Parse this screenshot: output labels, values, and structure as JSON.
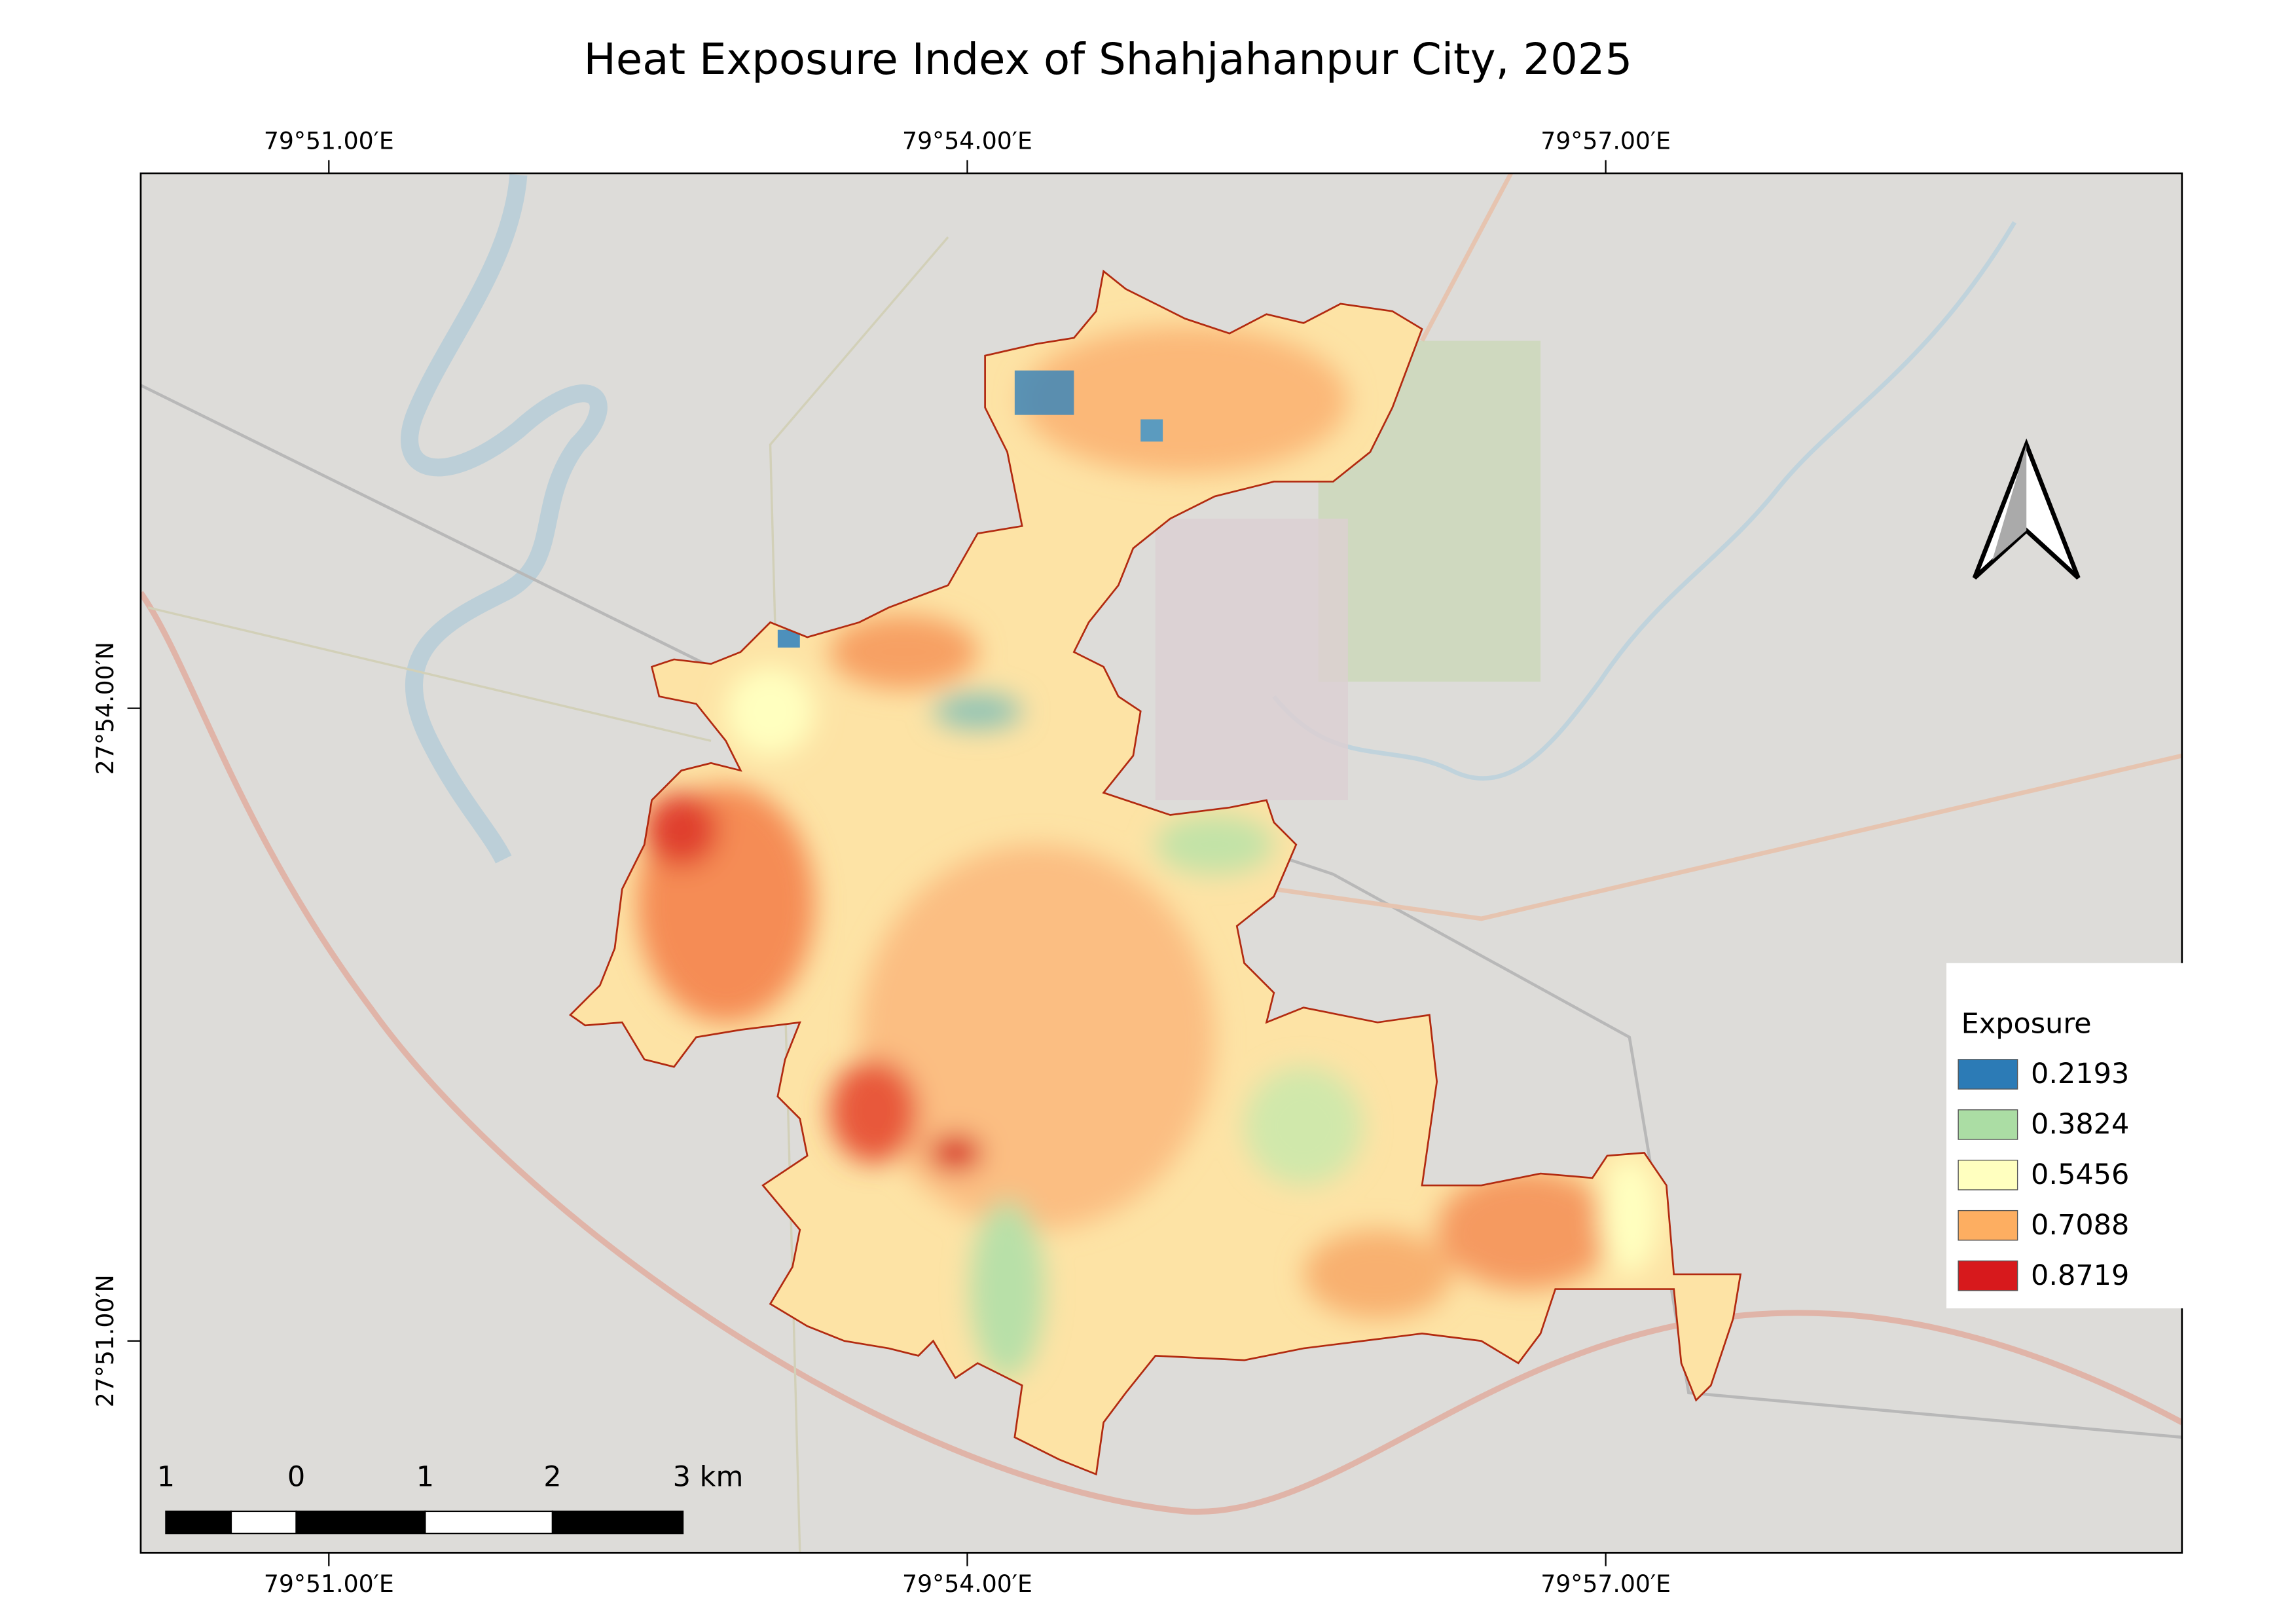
{
  "title": "Heat Exposure Index of Shahjahanpur City, 2025",
  "map": {
    "top_labels": [
      "79°51.00′E",
      "79°54.00′E",
      "79°57.00′E"
    ],
    "bottom_labels": [
      "79°51.00′E",
      "79°54.00′E",
      "79°57.00′E"
    ],
    "left_labels": [
      "27°54.00′N",
      "27°51.00′N"
    ]
  },
  "legend": {
    "title": "Exposure",
    "items": [
      {
        "label": "0.2193",
        "color": "#2c7bb6"
      },
      {
        "label": "0.3824",
        "color": "#abdda4"
      },
      {
        "label": "0.5456",
        "color": "#ffffbf"
      },
      {
        "label": "0.7088",
        "color": "#fdae61"
      },
      {
        "label": "0.8719",
        "color": "#d7191c"
      }
    ]
  },
  "scale_bar": {
    "labels": [
      "1",
      "0",
      "1",
      "2",
      "3 km"
    ]
  }
}
